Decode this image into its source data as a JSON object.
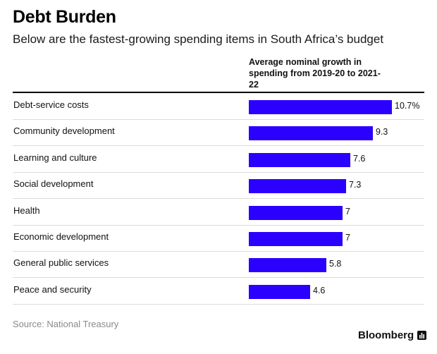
{
  "header": {
    "title": "Debt Burden",
    "subtitle": "Below are the fastest-growing spending items in South Africa’s budget",
    "column_header": "Average nominal growth in spending from 2019-20 to 2021-22"
  },
  "footer": {
    "source": "Source: National Treasury",
    "brand": "Bloomberg"
  },
  "colors": {
    "bar": "#2b00ff"
  },
  "chart_data": {
    "type": "bar",
    "orientation": "horizontal",
    "title": "Debt Burden",
    "subtitle": "Below are the fastest-growing spending items in South Africa’s budget",
    "xlabel": "Average nominal growth in spending from 2019-20 to 2021-22",
    "ylabel": "",
    "xlim": [
      0,
      10.7
    ],
    "grid": false,
    "categories": [
      "Debt-service costs",
      "Community development",
      "Learning and culture",
      "Social development",
      "Health",
      "Economic development",
      "General public services",
      "Peace and security"
    ],
    "values": [
      10.7,
      9.3,
      7.6,
      7.3,
      7,
      7,
      5.8,
      4.6
    ],
    "value_labels": [
      "10.7%",
      "9.3",
      "7.6",
      "7.3",
      "7",
      "7",
      "5.8",
      "4.6"
    ]
  }
}
